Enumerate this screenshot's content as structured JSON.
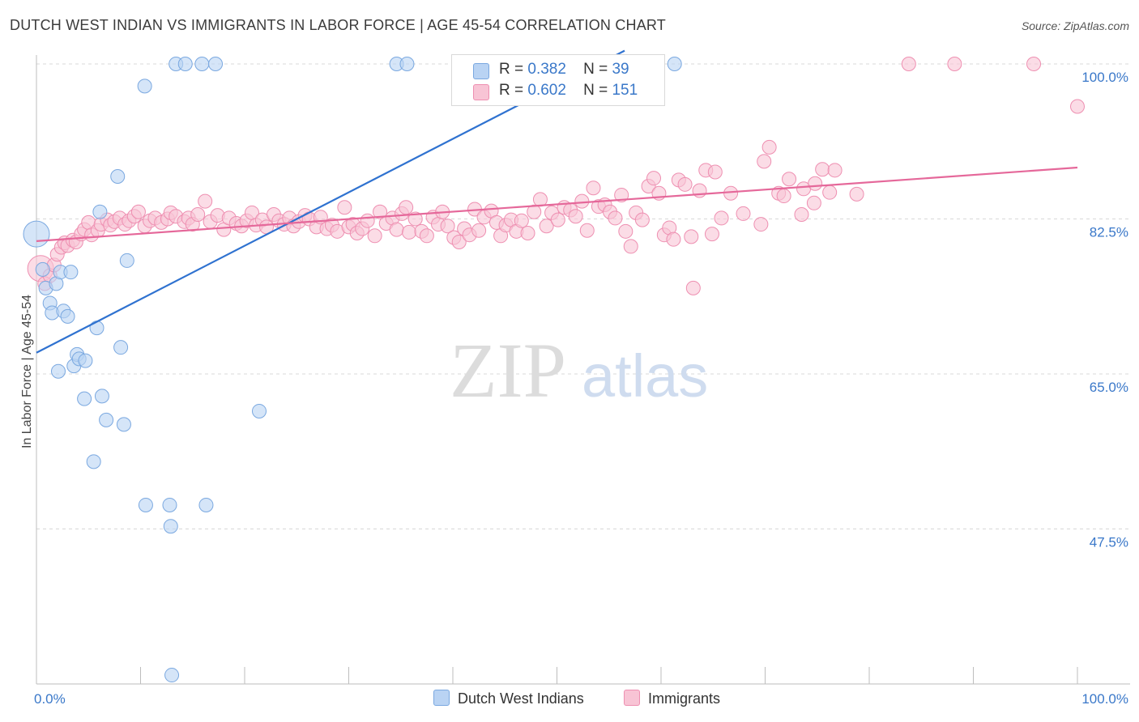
{
  "title": "DUTCH WEST INDIAN VS IMMIGRANTS IN LABOR FORCE | AGE 45-54 CORRELATION CHART",
  "source": "Source: ZipAtlas.com",
  "watermark": {
    "zip": "ZIP",
    "atlas": "atlas"
  },
  "colors": {
    "blue_fill": "#b9d3f3",
    "blue_stroke": "#7aa8e0",
    "blue_line": "#2f72d0",
    "pink_fill": "#f8c4d5",
    "pink_stroke": "#ee8fb1",
    "pink_line": "#e5689a",
    "axis_label": "#3a78c9",
    "grid": "#d8d8d8"
  },
  "legend": {
    "blue": {
      "r_label": "R =",
      "r_value": "0.382",
      "n_label": "N =",
      "n_value": "39"
    },
    "pink": {
      "r_label": "R =",
      "r_value": "0.602",
      "n_label": "N =",
      "n_value": "151"
    }
  },
  "chart_data": {
    "type": "scatter",
    "title": "DUTCH WEST INDIAN VS IMMIGRANTS IN LABOR FORCE | AGE 45-54 CORRELATION CHART",
    "xlabel": "",
    "ylabel": "In Labor Force | Age 45-54",
    "xlim": [
      0,
      100
    ],
    "ylim": [
      30,
      100
    ],
    "x_tick_labels": [
      "0.0%",
      "100.0%"
    ],
    "y_ticks": [
      47.5,
      65.0,
      82.5,
      100.0
    ],
    "y_tick_labels": [
      "47.5%",
      "65.0%",
      "82.5%",
      "100.0%"
    ],
    "grid": true,
    "legend_position": "top-center",
    "series": [
      {
        "name": "Dutch West Indians",
        "color": "#b9d3f3",
        "trend": {
          "x": [
            0,
            56.5
          ],
          "y": [
            67.4,
            101.5
          ]
        },
        "points": [
          {
            "x": 0.0,
            "y": 80.8,
            "big": true
          },
          {
            "x": 0.6,
            "y": 76.8
          },
          {
            "x": 0.9,
            "y": 74.7
          },
          {
            "x": 1.3,
            "y": 73.0
          },
          {
            "x": 1.5,
            "y": 71.9
          },
          {
            "x": 1.9,
            "y": 75.2
          },
          {
            "x": 2.1,
            "y": 65.3
          },
          {
            "x": 2.3,
            "y": 76.5
          },
          {
            "x": 2.6,
            "y": 72.1
          },
          {
            "x": 3.0,
            "y": 71.5
          },
          {
            "x": 3.3,
            "y": 76.5
          },
          {
            "x": 3.6,
            "y": 65.9
          },
          {
            "x": 3.9,
            "y": 67.2
          },
          {
            "x": 4.1,
            "y": 66.7
          },
          {
            "x": 4.7,
            "y": 66.5
          },
          {
            "x": 4.6,
            "y": 62.2
          },
          {
            "x": 5.5,
            "y": 55.1
          },
          {
            "x": 5.8,
            "y": 70.2
          },
          {
            "x": 6.3,
            "y": 62.5
          },
          {
            "x": 6.1,
            "y": 83.3
          },
          {
            "x": 6.7,
            "y": 59.8
          },
          {
            "x": 7.8,
            "y": 87.3
          },
          {
            "x": 8.1,
            "y": 68.0
          },
          {
            "x": 8.4,
            "y": 59.3
          },
          {
            "x": 8.7,
            "y": 77.8
          },
          {
            "x": 10.4,
            "y": 97.5
          },
          {
            "x": 10.5,
            "y": 50.2
          },
          {
            "x": 12.8,
            "y": 50.2
          },
          {
            "x": 12.9,
            "y": 47.8
          },
          {
            "x": 13.0,
            "y": 31.0
          },
          {
            "x": 13.4,
            "y": 100.0
          },
          {
            "x": 14.3,
            "y": 100.0
          },
          {
            "x": 15.9,
            "y": 100.0
          },
          {
            "x": 16.3,
            "y": 50.2
          },
          {
            "x": 17.2,
            "y": 100.0
          },
          {
            "x": 21.4,
            "y": 60.8
          },
          {
            "x": 34.6,
            "y": 100.0
          },
          {
            "x": 35.6,
            "y": 100.0
          },
          {
            "x": 61.3,
            "y": 100.0
          }
        ]
      },
      {
        "name": "Immigrants",
        "color": "#f8c4d5",
        "trend": {
          "x": [
            0,
            100
          ],
          "y": [
            80.0,
            88.3
          ]
        },
        "points": [
          {
            "x": 0.4,
            "y": 76.9,
            "big": true
          },
          {
            "x": 0.8,
            "y": 75.2
          },
          {
            "x": 1.3,
            "y": 76.1
          },
          {
            "x": 1.7,
            "y": 77.3
          },
          {
            "x": 2.0,
            "y": 78.5
          },
          {
            "x": 2.4,
            "y": 79.3
          },
          {
            "x": 2.7,
            "y": 79.8
          },
          {
            "x": 3.0,
            "y": 79.5
          },
          {
            "x": 3.5,
            "y": 80.1
          },
          {
            "x": 3.8,
            "y": 79.9
          },
          {
            "x": 4.3,
            "y": 80.8
          },
          {
            "x": 4.6,
            "y": 81.3
          },
          {
            "x": 5.0,
            "y": 82.1
          },
          {
            "x": 5.3,
            "y": 80.7
          },
          {
            "x": 5.9,
            "y": 81.2
          },
          {
            "x": 6.2,
            "y": 81.9
          },
          {
            "x": 6.8,
            "y": 82.4
          },
          {
            "x": 7.1,
            "y": 81.8
          },
          {
            "x": 7.5,
            "y": 82.2
          },
          {
            "x": 8.0,
            "y": 82.6
          },
          {
            "x": 8.5,
            "y": 81.9
          },
          {
            "x": 8.9,
            "y": 82.3
          },
          {
            "x": 9.4,
            "y": 82.8
          },
          {
            "x": 9.8,
            "y": 83.3
          },
          {
            "x": 10.4,
            "y": 81.7
          },
          {
            "x": 10.9,
            "y": 82.3
          },
          {
            "x": 11.4,
            "y": 82.6
          },
          {
            "x": 12.0,
            "y": 82.1
          },
          {
            "x": 12.6,
            "y": 82.5
          },
          {
            "x": 12.9,
            "y": 83.2
          },
          {
            "x": 13.4,
            "y": 82.8
          },
          {
            "x": 14.2,
            "y": 82.2
          },
          {
            "x": 14.6,
            "y": 82.6
          },
          {
            "x": 15.0,
            "y": 81.9
          },
          {
            "x": 15.5,
            "y": 83.0
          },
          {
            "x": 16.2,
            "y": 84.5
          },
          {
            "x": 16.7,
            "y": 82.2
          },
          {
            "x": 17.4,
            "y": 82.9
          },
          {
            "x": 18.0,
            "y": 81.3
          },
          {
            "x": 18.5,
            "y": 82.6
          },
          {
            "x": 19.2,
            "y": 82.0
          },
          {
            "x": 19.7,
            "y": 81.7
          },
          {
            "x": 20.2,
            "y": 82.3
          },
          {
            "x": 20.7,
            "y": 83.2
          },
          {
            "x": 21.1,
            "y": 81.8
          },
          {
            "x": 21.7,
            "y": 82.4
          },
          {
            "x": 22.1,
            "y": 81.6
          },
          {
            "x": 22.8,
            "y": 83.0
          },
          {
            "x": 23.3,
            "y": 82.3
          },
          {
            "x": 23.8,
            "y": 81.9
          },
          {
            "x": 24.3,
            "y": 82.6
          },
          {
            "x": 24.7,
            "y": 81.7
          },
          {
            "x": 25.2,
            "y": 82.2
          },
          {
            "x": 25.8,
            "y": 82.9
          },
          {
            "x": 26.2,
            "y": 82.5
          },
          {
            "x": 26.9,
            "y": 81.6
          },
          {
            "x": 27.3,
            "y": 82.7
          },
          {
            "x": 27.9,
            "y": 81.4
          },
          {
            "x": 28.4,
            "y": 81.8
          },
          {
            "x": 28.9,
            "y": 81.1
          },
          {
            "x": 29.6,
            "y": 83.8
          },
          {
            "x": 30.0,
            "y": 81.6
          },
          {
            "x": 30.4,
            "y": 81.9
          },
          {
            "x": 30.8,
            "y": 80.9
          },
          {
            "x": 31.3,
            "y": 81.4
          },
          {
            "x": 31.8,
            "y": 82.3
          },
          {
            "x": 32.5,
            "y": 80.6
          },
          {
            "x": 33.0,
            "y": 83.3
          },
          {
            "x": 33.6,
            "y": 82.0
          },
          {
            "x": 34.2,
            "y": 82.6
          },
          {
            "x": 34.6,
            "y": 81.3
          },
          {
            "x": 35.1,
            "y": 83.1
          },
          {
            "x": 35.5,
            "y": 83.8
          },
          {
            "x": 35.8,
            "y": 81.0
          },
          {
            "x": 36.4,
            "y": 82.5
          },
          {
            "x": 37.0,
            "y": 81.1
          },
          {
            "x": 37.5,
            "y": 80.6
          },
          {
            "x": 38.1,
            "y": 82.7
          },
          {
            "x": 38.6,
            "y": 81.9
          },
          {
            "x": 39.0,
            "y": 83.3
          },
          {
            "x": 39.5,
            "y": 81.7
          },
          {
            "x": 40.1,
            "y": 80.4
          },
          {
            "x": 40.6,
            "y": 79.9
          },
          {
            "x": 41.1,
            "y": 81.4
          },
          {
            "x": 41.6,
            "y": 80.7
          },
          {
            "x": 42.1,
            "y": 83.6
          },
          {
            "x": 42.5,
            "y": 81.2
          },
          {
            "x": 43.0,
            "y": 82.7
          },
          {
            "x": 43.7,
            "y": 83.4
          },
          {
            "x": 44.2,
            "y": 82.1
          },
          {
            "x": 44.6,
            "y": 80.6
          },
          {
            "x": 45.1,
            "y": 81.8
          },
          {
            "x": 45.6,
            "y": 82.4
          },
          {
            "x": 46.1,
            "y": 81.1
          },
          {
            "x": 46.6,
            "y": 82.3
          },
          {
            "x": 47.2,
            "y": 80.9
          },
          {
            "x": 47.8,
            "y": 83.3
          },
          {
            "x": 48.4,
            "y": 84.7
          },
          {
            "x": 49.0,
            "y": 81.7
          },
          {
            "x": 49.5,
            "y": 83.2
          },
          {
            "x": 50.1,
            "y": 82.4
          },
          {
            "x": 50.7,
            "y": 83.8
          },
          {
            "x": 51.3,
            "y": 83.5
          },
          {
            "x": 51.8,
            "y": 82.8
          },
          {
            "x": 52.4,
            "y": 84.5
          },
          {
            "x": 52.9,
            "y": 81.2
          },
          {
            "x": 53.5,
            "y": 86.0
          },
          {
            "x": 54.0,
            "y": 83.9
          },
          {
            "x": 54.6,
            "y": 84.1
          },
          {
            "x": 55.1,
            "y": 83.3
          },
          {
            "x": 55.6,
            "y": 82.6
          },
          {
            "x": 56.2,
            "y": 85.2
          },
          {
            "x": 56.6,
            "y": 81.1
          },
          {
            "x": 57.1,
            "y": 79.4
          },
          {
            "x": 57.6,
            "y": 83.2
          },
          {
            "x": 58.2,
            "y": 82.4
          },
          {
            "x": 58.8,
            "y": 86.2
          },
          {
            "x": 59.3,
            "y": 87.1
          },
          {
            "x": 59.8,
            "y": 85.4
          },
          {
            "x": 60.3,
            "y": 80.7
          },
          {
            "x": 60.8,
            "y": 81.5
          },
          {
            "x": 61.2,
            "y": 80.2
          },
          {
            "x": 61.7,
            "y": 86.9
          },
          {
            "x": 62.3,
            "y": 86.4
          },
          {
            "x": 62.9,
            "y": 80.5
          },
          {
            "x": 63.1,
            "y": 74.7
          },
          {
            "x": 63.7,
            "y": 85.7
          },
          {
            "x": 64.3,
            "y": 88.0
          },
          {
            "x": 64.9,
            "y": 80.8
          },
          {
            "x": 65.2,
            "y": 87.8
          },
          {
            "x": 65.8,
            "y": 82.6
          },
          {
            "x": 66.7,
            "y": 85.4
          },
          {
            "x": 67.9,
            "y": 83.1
          },
          {
            "x": 69.6,
            "y": 81.9
          },
          {
            "x": 69.9,
            "y": 89.0
          },
          {
            "x": 70.4,
            "y": 90.6
          },
          {
            "x": 71.3,
            "y": 85.4
          },
          {
            "x": 71.8,
            "y": 85.1
          },
          {
            "x": 72.3,
            "y": 87.0
          },
          {
            "x": 73.5,
            "y": 83.0
          },
          {
            "x": 73.7,
            "y": 85.9
          },
          {
            "x": 74.7,
            "y": 84.3
          },
          {
            "x": 74.8,
            "y": 86.5
          },
          {
            "x": 75.5,
            "y": 88.1
          },
          {
            "x": 76.2,
            "y": 85.5
          },
          {
            "x": 76.7,
            "y": 88.0
          },
          {
            "x": 78.8,
            "y": 85.3
          },
          {
            "x": 83.8,
            "y": 100.0
          },
          {
            "x": 88.2,
            "y": 100.0
          },
          {
            "x": 95.8,
            "y": 100.0
          },
          {
            "x": 100.0,
            "y": 95.2
          }
        ]
      }
    ]
  }
}
